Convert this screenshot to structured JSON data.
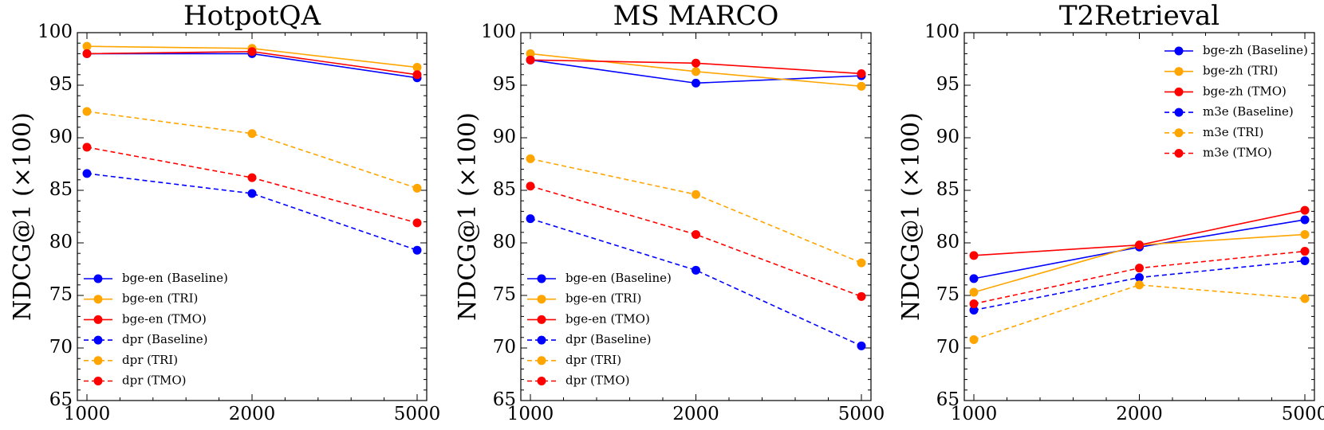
{
  "figure": {
    "colors": {
      "Baseline": "#0000ff",
      "TRI": "#ffa500",
      "TMO": "#ff0000"
    }
  },
  "chart_data": [
    {
      "type": "line",
      "title": "HotpotQA",
      "ylabel": "NDCG@1 (×100)",
      "xlabel": "",
      "categories": [
        "1000",
        "2000",
        "5000"
      ],
      "ylim": [
        65,
        100
      ],
      "yticks": [
        "65",
        "70",
        "75",
        "80",
        "85",
        "90",
        "95",
        "100"
      ],
      "legend_position": "lower-left",
      "grid": false,
      "series": [
        {
          "name": "bge-en (Baseline)",
          "color": "#0000ff",
          "dashed": false,
          "values": [
            98.0,
            98.0,
            95.7
          ]
        },
        {
          "name": "bge-en (TRI)",
          "color": "#ffa500",
          "dashed": false,
          "values": [
            98.7,
            98.5,
            96.7
          ]
        },
        {
          "name": "bge-en (TMO)",
          "color": "#ff0000",
          "dashed": false,
          "values": [
            98.0,
            98.2,
            96.0
          ]
        },
        {
          "name": "dpr (Baseline)",
          "color": "#0000ff",
          "dashed": true,
          "values": [
            86.6,
            84.7,
            79.3
          ]
        },
        {
          "name": "dpr (TRI)",
          "color": "#ffa500",
          "dashed": true,
          "values": [
            92.5,
            90.4,
            85.2
          ]
        },
        {
          "name": "dpr (TMO)",
          "color": "#ff0000",
          "dashed": true,
          "values": [
            89.1,
            86.2,
            81.9
          ]
        }
      ]
    },
    {
      "type": "line",
      "title": "MS MARCO",
      "ylabel": "NDCG@1 (×100)",
      "xlabel": "",
      "categories": [
        "1000",
        "2000",
        "5000"
      ],
      "ylim": [
        65,
        100
      ],
      "yticks": [
        "65",
        "70",
        "75",
        "80",
        "85",
        "90",
        "95",
        "100"
      ],
      "legend_position": "lower-left",
      "grid": false,
      "series": [
        {
          "name": "bge-en (Baseline)",
          "color": "#0000ff",
          "dashed": false,
          "values": [
            97.4,
            95.2,
            95.9
          ]
        },
        {
          "name": "bge-en (TRI)",
          "color": "#ffa500",
          "dashed": false,
          "values": [
            98.0,
            96.3,
            94.9
          ]
        },
        {
          "name": "bge-en (TMO)",
          "color": "#ff0000",
          "dashed": false,
          "values": [
            97.4,
            97.1,
            96.1
          ]
        },
        {
          "name": "dpr (Baseline)",
          "color": "#0000ff",
          "dashed": true,
          "values": [
            82.3,
            77.4,
            70.2
          ]
        },
        {
          "name": "dpr (TRI)",
          "color": "#ffa500",
          "dashed": true,
          "values": [
            88.0,
            84.6,
            78.1
          ]
        },
        {
          "name": "dpr (TMO)",
          "color": "#ff0000",
          "dashed": true,
          "values": [
            85.4,
            80.8,
            74.9
          ]
        }
      ]
    },
    {
      "type": "line",
      "title": "T2Retrieval",
      "ylabel": "NDCG@1 (×100)",
      "xlabel": "",
      "categories": [
        "1000",
        "2000",
        "5000"
      ],
      "ylim": [
        65,
        100
      ],
      "yticks": [
        "65",
        "70",
        "75",
        "80",
        "85",
        "90",
        "95",
        "100"
      ],
      "legend_position": "upper-right",
      "grid": false,
      "series": [
        {
          "name": "bge-zh (Baseline)",
          "color": "#0000ff",
          "dashed": false,
          "values": [
            76.6,
            79.6,
            82.2
          ]
        },
        {
          "name": "bge-zh (TRI)",
          "color": "#ffa500",
          "dashed": false,
          "values": [
            75.3,
            79.8,
            80.8
          ]
        },
        {
          "name": "bge-zh (TMO)",
          "color": "#ff0000",
          "dashed": false,
          "values": [
            78.8,
            79.8,
            83.1
          ]
        },
        {
          "name": "m3e (Baseline)",
          "color": "#0000ff",
          "dashed": true,
          "values": [
            73.6,
            76.7,
            78.3
          ]
        },
        {
          "name": "m3e (TRI)",
          "color": "#ffa500",
          "dashed": true,
          "values": [
            70.8,
            76.0,
            74.7
          ]
        },
        {
          "name": "m3e (TMO)",
          "color": "#ff0000",
          "dashed": true,
          "values": [
            74.2,
            77.6,
            79.2
          ]
        }
      ]
    }
  ]
}
